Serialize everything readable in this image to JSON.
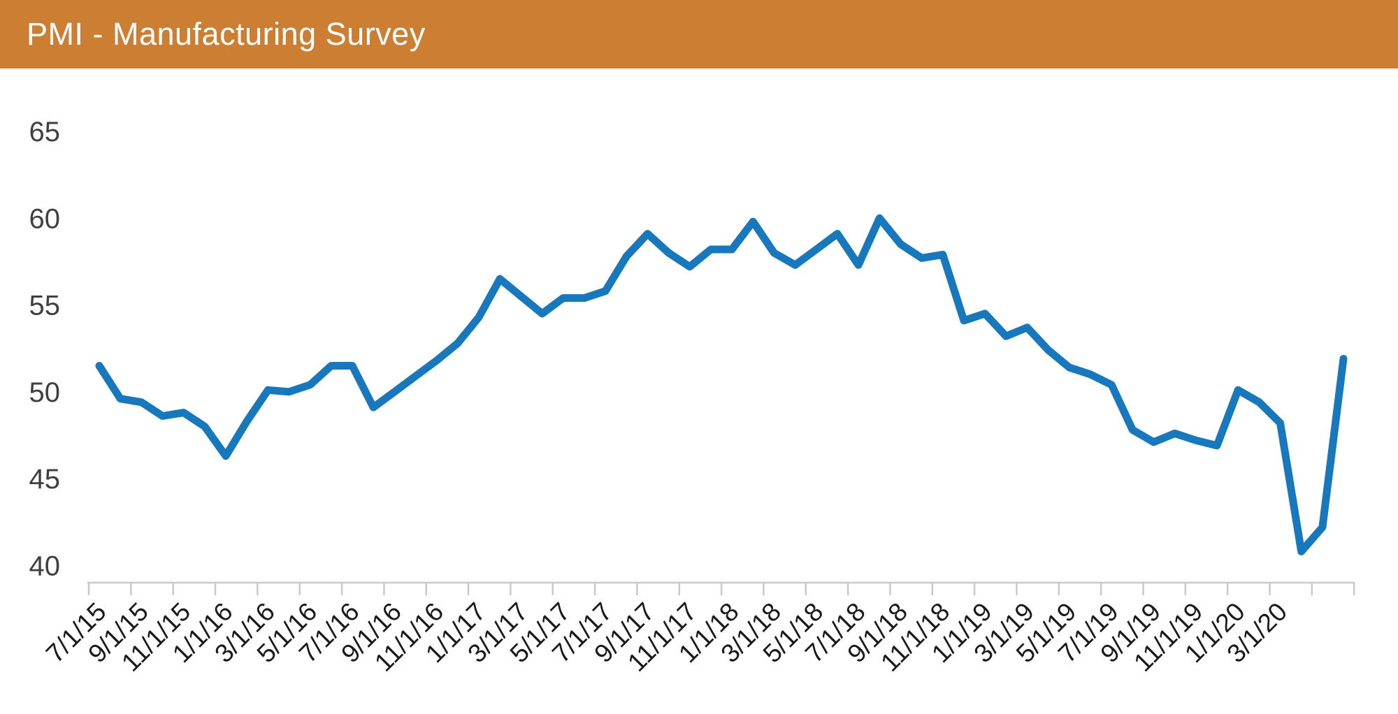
{
  "header": {
    "title": "PMI - Manufacturing Survey",
    "background_color": "#CC7F33",
    "text_color": "#FFFFFF"
  },
  "chart_data": {
    "type": "line",
    "title": "PMI - Manufacturing Survey",
    "x": [
      "7/1/15",
      "8/1/15",
      "9/1/15",
      "10/1/15",
      "11/1/15",
      "12/1/15",
      "1/1/16",
      "2/1/16",
      "3/1/16",
      "4/1/16",
      "5/1/16",
      "6/1/16",
      "7/1/16",
      "8/1/16",
      "9/1/16",
      "10/1/16",
      "11/1/16",
      "12/1/16",
      "1/1/17",
      "2/1/17",
      "3/1/17",
      "4/1/17",
      "5/1/17",
      "6/1/17",
      "7/1/17",
      "8/1/17",
      "9/1/17",
      "10/1/17",
      "11/1/17",
      "12/1/17",
      "1/1/18",
      "2/1/18",
      "3/1/18",
      "4/1/18",
      "5/1/18",
      "6/1/18",
      "7/1/18",
      "8/1/18",
      "9/1/18",
      "10/1/18",
      "11/1/18",
      "12/1/18",
      "1/1/19",
      "2/1/19",
      "3/1/19",
      "4/1/19",
      "5/1/19",
      "6/1/19",
      "7/1/19",
      "8/1/19",
      "9/1/19",
      "10/1/19",
      "11/1/19",
      "12/1/19",
      "1/1/20",
      "2/1/20",
      "3/1/20",
      "4/1/20",
      "5/1/20",
      "6/1/20"
    ],
    "values": [
      51.5,
      49.6,
      49.4,
      48.6,
      48.8,
      48.0,
      46.3,
      48.3,
      50.1,
      50.0,
      50.4,
      51.5,
      51.5,
      49.1,
      50.0,
      50.9,
      51.8,
      52.8,
      54.3,
      56.5,
      55.5,
      54.5,
      55.4,
      55.4,
      55.8,
      57.8,
      59.1,
      58.0,
      57.2,
      58.2,
      58.2,
      59.8,
      58.0,
      57.3,
      58.2,
      59.1,
      57.3,
      60.0,
      58.5,
      57.7,
      57.9,
      54.1,
      54.5,
      53.2,
      53.7,
      52.4,
      51.4,
      51.0,
      50.4,
      47.8,
      47.1,
      47.6,
      47.2,
      46.9,
      50.1,
      49.4,
      48.2,
      40.8,
      42.2,
      51.9
    ],
    "x_tick_labels": [
      "7/1/15",
      "9/1/15",
      "11/1/15",
      "1/1/16",
      "3/1/16",
      "5/1/16",
      "7/1/16",
      "9/1/16",
      "11/1/16",
      "1/1/17",
      "3/1/17",
      "5/1/17",
      "7/1/17",
      "9/1/17",
      "11/1/17",
      "1/1/18",
      "3/1/18",
      "5/1/18",
      "7/1/18",
      "9/1/18",
      "11/1/18",
      "1/1/19",
      "3/1/19",
      "5/1/19",
      "7/1/19",
      "9/1/19",
      "11/1/19",
      "1/1/20",
      "3/1/20"
    ],
    "y_ticks": [
      40,
      45,
      50,
      55,
      60,
      65
    ],
    "ylim": [
      39.0,
      66.5
    ],
    "grid": false,
    "legend": "none",
    "line_color": "#1878BE",
    "axis_color": "#C9C9C9",
    "xlabel_color": "#1A1A1A",
    "ylabel_color": "#3F3F3F"
  }
}
